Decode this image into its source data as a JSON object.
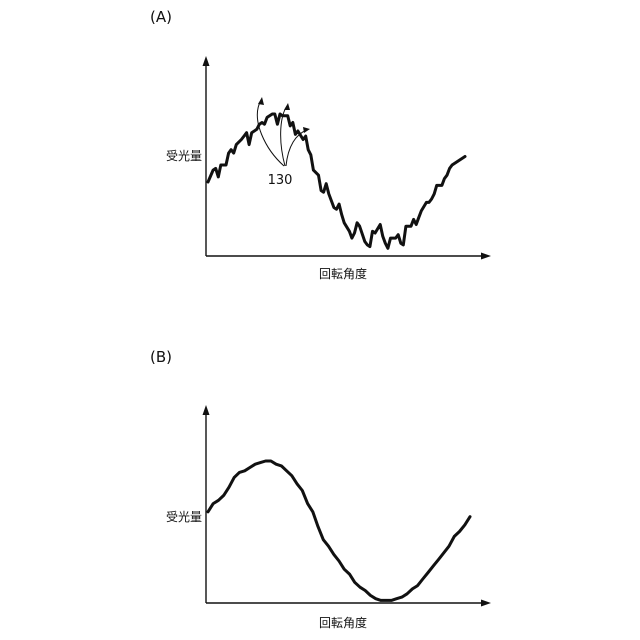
{
  "chart_data": [
    {
      "type": "line",
      "panel_label": "(A)",
      "xlabel": "回転角度",
      "ylabel": "受光量",
      "grid": false,
      "annotation": {
        "text": "130"
      },
      "series": [
        {
          "x": [
            0,
            2,
            3,
            4,
            5,
            7,
            8,
            9,
            10,
            11,
            13,
            14,
            15,
            16,
            17,
            19,
            20,
            21,
            22,
            23,
            25,
            26,
            27,
            28,
            29,
            31,
            32,
            33,
            34,
            35,
            37,
            38,
            39,
            40,
            41,
            43,
            44,
            45,
            46,
            47,
            49,
            50,
            51,
            52,
            53,
            55,
            56,
            57,
            58,
            59,
            61,
            62,
            63,
            64,
            65,
            67,
            68,
            69,
            70,
            71,
            73,
            74,
            75,
            76,
            77,
            79,
            80,
            81,
            82,
            83,
            85,
            86,
            87,
            88,
            89,
            91,
            92,
            93,
            94,
            95,
            100
          ],
          "y": [
            40,
            47,
            48,
            43,
            50,
            50,
            57,
            59,
            57,
            62,
            65,
            67,
            69,
            62,
            69,
            71,
            74,
            75,
            74,
            78,
            80,
            80,
            74,
            80,
            79,
            79,
            73,
            75,
            68,
            70,
            65,
            67,
            59,
            56,
            47,
            44,
            35,
            34,
            39,
            33,
            25,
            24,
            27,
            21,
            16,
            11,
            7,
            10,
            16,
            14,
            5,
            3,
            2,
            11,
            10,
            15,
            8,
            4,
            1,
            7,
            7,
            9,
            4,
            3,
            14,
            14,
            18,
            15,
            19,
            23,
            28,
            28,
            30,
            33,
            38,
            38,
            42,
            44,
            48,
            50,
            55
          ]
        }
      ]
    },
    {
      "type": "line",
      "panel_label": "(B)",
      "xlabel": "回転角度",
      "ylabel": "受光量",
      "grid": false,
      "series": [
        {
          "x": [
            0,
            2,
            4,
            6,
            8,
            10,
            12,
            14,
            16,
            18,
            20,
            22,
            24,
            26,
            28,
            30,
            32,
            34,
            36,
            38,
            40,
            42,
            44,
            46,
            48,
            50,
            52,
            54,
            56,
            58,
            60,
            62,
            64,
            66,
            68,
            70,
            72,
            74,
            76,
            78,
            80,
            82,
            84,
            86,
            88,
            90,
            92,
            94,
            96,
            98,
            100
          ],
          "y": [
            55,
            60,
            62,
            65,
            70,
            76,
            79,
            80,
            82,
            84,
            85,
            86,
            86,
            84,
            83,
            80,
            77,
            72,
            68,
            60,
            55,
            46,
            38,
            34,
            29,
            25,
            20,
            17,
            12,
            9,
            7,
            4,
            2,
            1,
            1,
            1,
            2,
            3,
            5,
            8,
            10,
            14,
            18,
            22,
            26,
            30,
            34,
            40,
            43,
            47,
            52
          ]
        }
      ]
    }
  ]
}
